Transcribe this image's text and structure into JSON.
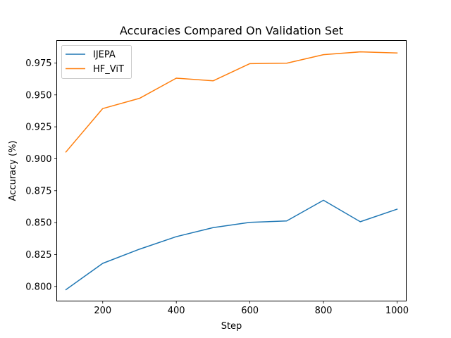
{
  "chart_data": {
    "type": "line",
    "title": "Accuracies Compared On Validation Set",
    "xlabel": "Step",
    "ylabel": "Accuracy (%)",
    "x": [
      100,
      200,
      300,
      400,
      500,
      600,
      700,
      800,
      900,
      1000
    ],
    "xlim": [
      75,
      1025
    ],
    "ylim": [
      0.7886,
      0.9926
    ],
    "xticks": [
      200,
      400,
      600,
      800,
      1000
    ],
    "yticks": [
      0.8,
      0.825,
      0.85,
      0.875,
      0.9,
      0.925,
      0.95,
      0.975
    ],
    "ytick_labels": [
      "0.800",
      "0.825",
      "0.850",
      "0.875",
      "0.900",
      "0.925",
      "0.950",
      "0.975"
    ],
    "grid": false,
    "legend": "top-left",
    "series": [
      {
        "name": "IJEPA",
        "color": "#1f77b4",
        "values": [
          0.7975,
          0.8181,
          0.8292,
          0.839,
          0.8461,
          0.8502,
          0.8513,
          0.8675,
          0.8507,
          0.8605
        ]
      },
      {
        "name": "HF_ViT",
        "color": "#ff7f0e",
        "values": [
          0.9053,
          0.9393,
          0.9473,
          0.9631,
          0.961,
          0.9745,
          0.9748,
          0.9815,
          0.9837,
          0.9828
        ]
      }
    ]
  }
}
